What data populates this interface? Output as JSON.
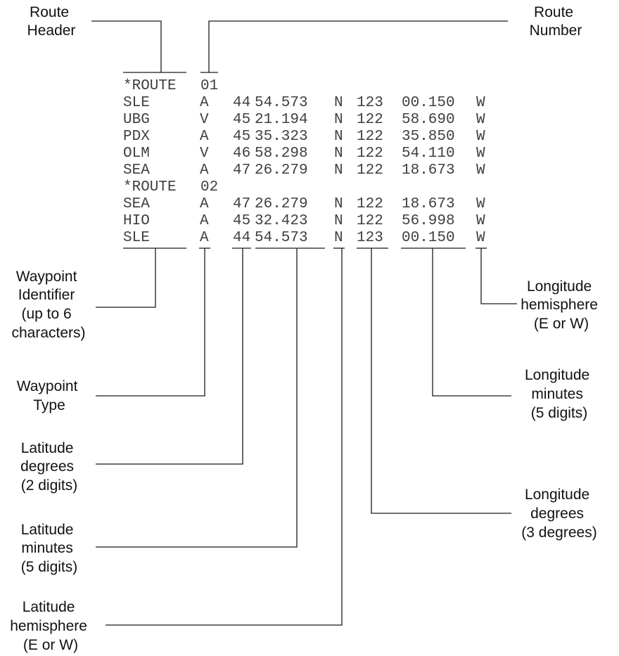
{
  "route_listing": [
    {
      "type": "header",
      "label": "*ROUTE",
      "number": "01"
    },
    {
      "type": "waypoint",
      "id": "SLE",
      "wtype": "A",
      "lat_deg": "44",
      "lat_min": "54.573",
      "lat_hem": "N",
      "lon_deg": "123",
      "lon_min": "00.150",
      "lon_hem": "W"
    },
    {
      "type": "waypoint",
      "id": "UBG",
      "wtype": "V",
      "lat_deg": "45",
      "lat_min": "21.194",
      "lat_hem": "N",
      "lon_deg": "122",
      "lon_min": "58.690",
      "lon_hem": "W"
    },
    {
      "type": "waypoint",
      "id": "PDX",
      "wtype": "A",
      "lat_deg": "45",
      "lat_min": "35.323",
      "lat_hem": "N",
      "lon_deg": "122",
      "lon_min": "35.850",
      "lon_hem": "W"
    },
    {
      "type": "waypoint",
      "id": "OLM",
      "wtype": "V",
      "lat_deg": "46",
      "lat_min": "58.298",
      "lat_hem": "N",
      "lon_deg": "122",
      "lon_min": "54.110",
      "lon_hem": "W"
    },
    {
      "type": "waypoint",
      "id": "SEA",
      "wtype": "A",
      "lat_deg": "47",
      "lat_min": "26.279",
      "lat_hem": "N",
      "lon_deg": "122",
      "lon_min": "18.673",
      "lon_hem": "W"
    },
    {
      "type": "header",
      "label": "*ROUTE",
      "number": "02"
    },
    {
      "type": "waypoint",
      "id": "SEA",
      "wtype": "A",
      "lat_deg": "47",
      "lat_min": "26.279",
      "lat_hem": "N",
      "lon_deg": "122",
      "lon_min": "18.673",
      "lon_hem": "W"
    },
    {
      "type": "waypoint",
      "id": "HIO",
      "wtype": "A",
      "lat_deg": "45",
      "lat_min": "32.423",
      "lat_hem": "N",
      "lon_deg": "122",
      "lon_min": "56.998",
      "lon_hem": "W"
    },
    {
      "type": "waypoint",
      "id": "SLE",
      "wtype": "A",
      "lat_deg": "44",
      "lat_min": "54.573",
      "lat_hem": "N",
      "lon_deg": "123",
      "lon_min": "00.150",
      "lon_hem": "W"
    }
  ],
  "callouts": {
    "route_header": [
      "Route",
      "Header"
    ],
    "route_number": [
      "Route",
      "Number"
    ],
    "waypoint_identifier": [
      "Waypoint",
      "Identifier",
      "(up to 6",
      "characters)"
    ],
    "waypoint_type": [
      "Waypoint",
      "Type"
    ],
    "latitude_degrees": [
      "Latitude",
      "degrees",
      "(2 digits)"
    ],
    "latitude_minutes": [
      "Latitude",
      "minutes",
      "(5 digits)"
    ],
    "latitude_hemisphere": [
      "Latitude",
      "hemisphere",
      "(E or W)"
    ],
    "longitude_hemisphere": [
      "Longitude",
      "hemisphere",
      "(E or W)"
    ],
    "longitude_minutes": [
      "Longitude",
      "minutes",
      "(5 digits)"
    ],
    "longitude_degrees": [
      "Longitude",
      "degrees",
      "(3 degrees)"
    ]
  }
}
